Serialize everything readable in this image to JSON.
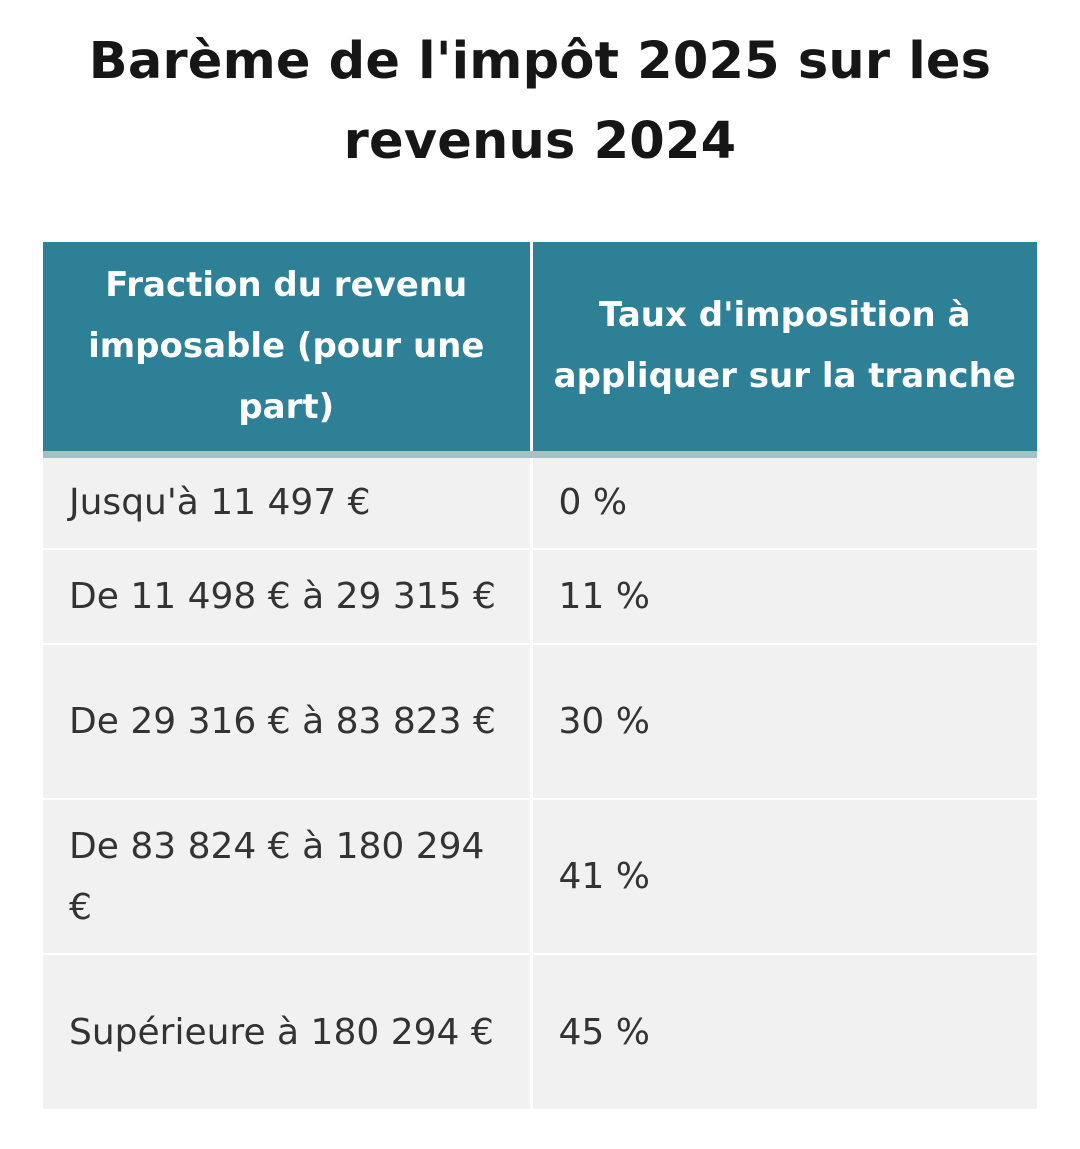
{
  "title": "Barème de l'impôt 2025 sur les revenus 2024",
  "table": {
    "headers": [
      "Fraction du revenu imposable (pour une part)",
      "Taux d'imposition à appliquer sur la tranche"
    ],
    "rows": [
      {
        "bracket": "Jusqu'à 11 497 €",
        "rate": "0 %"
      },
      {
        "bracket": "De 11 498 € à 29 315 €",
        "rate": "11 %"
      },
      {
        "bracket": "De 29 316 € à 83 823 €",
        "rate": "30 %"
      },
      {
        "bracket": "De 83 824 € à 180 294 €",
        "rate": "41 %"
      },
      {
        "bracket": "Supérieure à 180 294 €",
        "rate": "45 %"
      }
    ]
  },
  "colors": {
    "header_background": "#2d8095",
    "header_text": "#ffffff",
    "row_background": "#f1f1f1",
    "body_text": "#333333"
  }
}
